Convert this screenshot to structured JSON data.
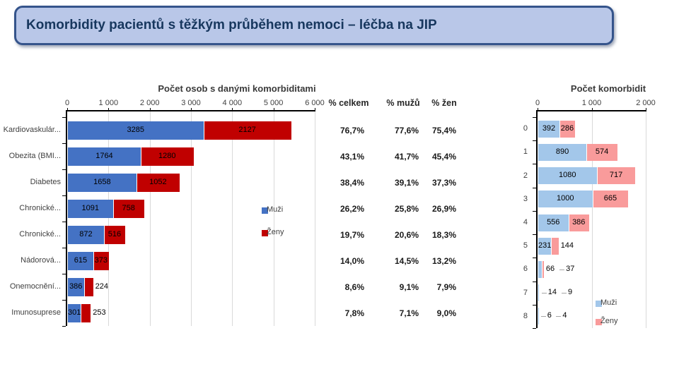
{
  "page_title": "Komorbidity pacientů s těžkým průběhem nemoci – léčba na JIP",
  "colors": {
    "title_bg": "#B9C7E8",
    "title_border": "#35548B",
    "title_text": "#17375E",
    "muzi_dark": "#4472C4",
    "zeny_dark": "#C00000",
    "muzi_light": "#A3C7EA",
    "zeny_light": "#F99B9B",
    "gridline": "#D9D9D9",
    "axis": "#000000",
    "label_text": "#404040"
  },
  "chart_data": [
    {
      "type": "bar",
      "orientation": "horizontal",
      "stacked": true,
      "title": "Počet osob s danými komorbiditami",
      "categories": [
        "Kardiovaskulár...",
        "Obezita (BMI...",
        "Diabetes",
        "Chronické...",
        "Chronické...",
        "Nádorová...",
        "Onemocnění...",
        "Imunosuprese"
      ],
      "series": [
        {
          "name": "Muži",
          "values": [
            3285,
            1764,
            1658,
            1091,
            872,
            615,
            386,
            301
          ]
        },
        {
          "name": "Ženy",
          "values": [
            2127,
            1280,
            1052,
            758,
            516,
            373,
            224,
            253
          ]
        }
      ],
      "x_ticks": [
        "0",
        "1 000",
        "2 000",
        "3 000",
        "4 000",
        "5 000",
        "6 000"
      ],
      "xlim": [
        0,
        6000
      ],
      "grid": true,
      "legend_position": "inside-right"
    },
    {
      "type": "bar",
      "orientation": "horizontal",
      "stacked": true,
      "title": "Počet komorbidit",
      "categories": [
        "0",
        "1",
        "2",
        "3",
        "4",
        "5",
        "6",
        "7",
        "8"
      ],
      "series": [
        {
          "name": "Muži",
          "values": [
            392,
            890,
            1080,
            1000,
            556,
            231,
            66,
            14,
            6
          ]
        },
        {
          "name": "Ženy",
          "values": [
            286,
            574,
            717,
            665,
            386,
            144,
            37,
            9,
            4
          ]
        }
      ],
      "x_ticks": [
        "0",
        "1 000",
        "2 000"
      ],
      "xlim": [
        0,
        2000
      ],
      "grid": true,
      "legend_position": "inside-bottom-right"
    },
    {
      "type": "table",
      "headers": [
        "% celkem",
        "% mužů",
        "% žen"
      ],
      "rows": [
        [
          "76,7%",
          "77,6%",
          "75,4%"
        ],
        [
          "43,1%",
          "41,7%",
          "45,4%"
        ],
        [
          "38,4%",
          "39,1%",
          "37,3%"
        ],
        [
          "26,2%",
          "25,8%",
          "26,9%"
        ],
        [
          "19,7%",
          "20,6%",
          "18,3%"
        ],
        [
          "14,0%",
          "14,5%",
          "13,2%"
        ],
        [
          "8,6%",
          "9,1%",
          "7,9%"
        ],
        [
          "7,8%",
          "7,1%",
          "9,0%"
        ]
      ]
    }
  ]
}
